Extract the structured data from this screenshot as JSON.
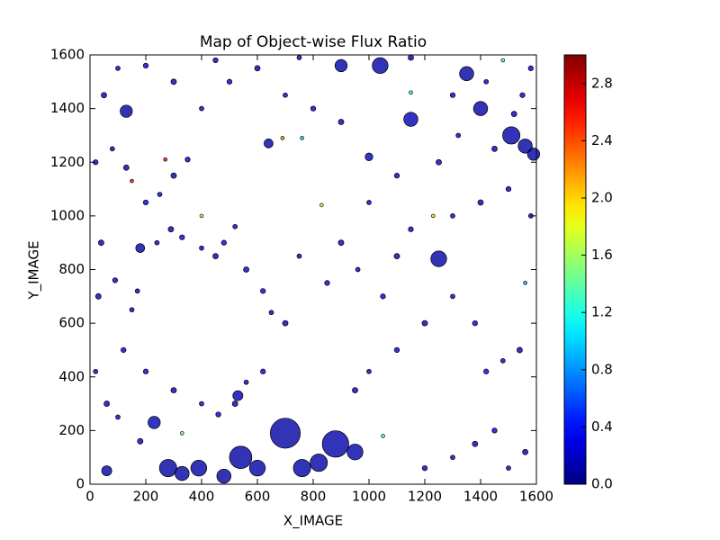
{
  "chart_data": {
    "type": "scatter",
    "title": "Map of Object-wise Flux Ratio",
    "xlabel": "X_IMAGE",
    "ylabel": "Y_IMAGE",
    "xlim": [
      0,
      1600
    ],
    "ylim": [
      0,
      1600
    ],
    "xticks": [
      0,
      200,
      400,
      600,
      800,
      1000,
      1200,
      1400,
      1600
    ],
    "yticks": [
      0,
      200,
      400,
      600,
      800,
      1000,
      1200,
      1400,
      1600
    ],
    "colormap": "jet",
    "clim": [
      0,
      3
    ],
    "cticks": [
      {
        "value": 0,
        "label": "0.0"
      },
      0.4,
      0.8,
      1.2,
      1.6,
      {
        "value": 2,
        "label": "2.0"
      },
      2.4,
      2.8
    ],
    "x": [
      700,
      880,
      540,
      280,
      1250,
      1150,
      390,
      760,
      330,
      480,
      600,
      820,
      950,
      230,
      60,
      1590,
      1510,
      1400,
      1040,
      130,
      1350,
      900,
      530,
      640,
      1000,
      180,
      1560,
      1230,
      150,
      690,
      1480,
      830,
      270,
      400,
      1150,
      760,
      1050,
      330,
      1560,
      20,
      60,
      120,
      150,
      30,
      90,
      170,
      40,
      20,
      80,
      130,
      200,
      250,
      300,
      350,
      240,
      290,
      330,
      400,
      450,
      480,
      520,
      560,
      620,
      650,
      700,
      620,
      560,
      520,
      460,
      400,
      300,
      200,
      100,
      180,
      1200,
      1300,
      1380,
      1450,
      1500,
      1560,
      1420,
      1480,
      1540,
      1380,
      1300,
      1200,
      1100,
      1000,
      950,
      1050,
      960,
      900,
      850,
      750,
      1100,
      1150,
      1300,
      1400,
      1500,
      1580,
      1450,
      1550,
      1320,
      1250,
      1100,
      1000,
      900,
      800,
      700,
      600,
      500,
      400,
      300,
      200,
      100,
      50,
      450,
      750,
      1150,
      1300,
      1420,
      1520,
      1580
    ],
    "y": [
      190,
      150,
      100,
      60,
      840,
      1360,
      60,
      60,
      40,
      30,
      60,
      80,
      120,
      230,
      50,
      1230,
      1300,
      1400,
      1560,
      1390,
      1530,
      1560,
      330,
      1270,
      1220,
      880,
      1260,
      1000,
      1130,
      1290,
      1580,
      1040,
      1210,
      1000,
      1460,
      1290,
      180,
      190,
      750,
      420,
      300,
      500,
      650,
      700,
      760,
      720,
      900,
      1200,
      1250,
      1180,
      1050,
      1080,
      1150,
      1210,
      900,
      950,
      920,
      880,
      850,
      900,
      960,
      800,
      720,
      640,
      600,
      420,
      380,
      300,
      260,
      300,
      350,
      420,
      250,
      160,
      60,
      100,
      150,
      200,
      60,
      120,
      420,
      460,
      500,
      600,
      700,
      600,
      500,
      420,
      350,
      700,
      800,
      900,
      750,
      850,
      850,
      950,
      1000,
      1050,
      1100,
      1000,
      1250,
      1450,
      1300,
      1200,
      1150,
      1050,
      1350,
      1400,
      1450,
      1550,
      1500,
      1400,
      1500,
      1560,
      1550,
      1450,
      1580,
      1590,
      1590,
      1450,
      1500,
      1380,
      1550
    ],
    "sizes": [
      900,
      700,
      500,
      300,
      250,
      200,
      250,
      300,
      200,
      200,
      250,
      300,
      250,
      150,
      100,
      150,
      300,
      200,
      250,
      150,
      200,
      150,
      100,
      80,
      60,
      80,
      200,
      12,
      12,
      12,
      12,
      12,
      12,
      12,
      12,
      12,
      12,
      12,
      12,
      20,
      30,
      25,
      20,
      30,
      25,
      20,
      30,
      25,
      20,
      30,
      25,
      20,
      30,
      25,
      20,
      30,
      25,
      20,
      30,
      25,
      20,
      30,
      25,
      20,
      30,
      25,
      20,
      30,
      25,
      20,
      30,
      25,
      20,
      30,
      25,
      20,
      30,
      25,
      20,
      30,
      25,
      20,
      30,
      25,
      20,
      30,
      25,
      20,
      30,
      25,
      20,
      30,
      25,
      20,
      30,
      25,
      20,
      30,
      25,
      20,
      30,
      25,
      20,
      30,
      25,
      20,
      30,
      25,
      20,
      30,
      25,
      20,
      30,
      25,
      20,
      30,
      25,
      20,
      30,
      25,
      20,
      30,
      25
    ],
    "values": [
      0.1,
      0.12,
      0.1,
      0.1,
      0.1,
      0.15,
      0.1,
      0.12,
      0.1,
      0.1,
      0.12,
      0.1,
      0.12,
      0.15,
      0.1,
      0.1,
      0.12,
      0.1,
      0.12,
      0.1,
      0.1,
      0.12,
      0.15,
      0.1,
      0.15,
      0.1,
      0.1,
      2.0,
      2.6,
      2.2,
      1.4,
      1.8,
      2.6,
      1.6,
      1.2,
      1.0,
      1.3,
      1.5,
      0.9,
      0.2,
      0.15,
      0.25,
      0.2,
      0.15,
      0.25,
      0.2,
      0.15,
      0.25,
      0.2,
      0.15,
      0.25,
      0.2,
      0.15,
      0.25,
      0.2,
      0.15,
      0.25,
      0.2,
      0.15,
      0.25,
      0.2,
      0.15,
      0.25,
      0.2,
      0.15,
      0.25,
      0.2,
      0.15,
      0.25,
      0.2,
      0.15,
      0.25,
      0.2,
      0.15,
      0.25,
      0.2,
      0.15,
      0.25,
      0.2,
      0.15,
      0.25,
      0.2,
      0.15,
      0.25,
      0.2,
      0.15,
      0.25,
      0.2,
      0.15,
      0.25,
      0.2,
      0.15,
      0.25,
      0.2,
      0.15,
      0.25,
      0.2,
      0.15,
      0.25,
      0.2,
      0.15,
      0.25,
      0.2,
      0.15,
      0.25,
      0.2,
      0.15,
      0.25,
      0.2,
      0.15,
      0.25,
      0.2,
      0.15,
      0.25,
      0.2,
      0.15,
      0.25,
      0.2,
      0.15,
      0.25,
      0.2,
      0.15,
      0.25
    ]
  }
}
